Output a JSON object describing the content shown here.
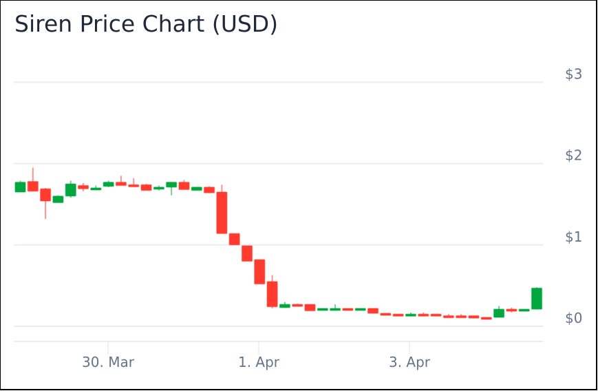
{
  "title": "Siren Price Chart (USD)",
  "colors": {
    "up": "#00a63e",
    "down": "#ff3b30",
    "grid": "#e9edf2",
    "axis_text": "#64748b",
    "title_text": "#1e293b"
  },
  "y_axis": {
    "ticks": [
      {
        "label": "$3",
        "value": 3
      },
      {
        "label": "$2",
        "value": 2
      },
      {
        "label": "$1",
        "value": 1
      },
      {
        "label": "$0",
        "value": 0
      }
    ]
  },
  "x_axis": {
    "ticks": [
      {
        "label": "30. Mar",
        "index": 7.5
      },
      {
        "label": "1. Apr",
        "index": 19.5
      },
      {
        "label": "3. Apr",
        "index": 31.5
      }
    ]
  },
  "chart_data": {
    "type": "candlestick",
    "title": "Siren Price Chart (USD)",
    "xlabel": "",
    "ylabel": "USD",
    "ylim": [
      0,
      3
    ],
    "grid": true,
    "y_ticks": [
      "$0",
      "$1",
      "$2",
      "$3"
    ],
    "x_ticks": [
      "30. Mar",
      "1. Apr",
      "3. Apr"
    ],
    "interval": "~4h",
    "candles": [
      {
        "o": 1.65,
        "h": 1.79,
        "l": 1.65,
        "c": 1.77
      },
      {
        "o": 1.78,
        "h": 1.95,
        "l": 1.66,
        "c": 1.66
      },
      {
        "o": 1.69,
        "h": 1.7,
        "l": 1.32,
        "c": 1.54
      },
      {
        "o": 1.52,
        "h": 1.61,
        "l": 1.52,
        "c": 1.6
      },
      {
        "o": 1.6,
        "h": 1.79,
        "l": 1.58,
        "c": 1.75
      },
      {
        "o": 1.73,
        "h": 1.76,
        "l": 1.66,
        "c": 1.69
      },
      {
        "o": 1.68,
        "h": 1.73,
        "l": 1.68,
        "c": 1.7
      },
      {
        "o": 1.72,
        "h": 1.79,
        "l": 1.71,
        "c": 1.77
      },
      {
        "o": 1.77,
        "h": 1.85,
        "l": 1.74,
        "c": 1.73
      },
      {
        "o": 1.74,
        "h": 1.82,
        "l": 1.73,
        "c": 1.72
      },
      {
        "o": 1.74,
        "h": 1.75,
        "l": 1.67,
        "c": 1.67
      },
      {
        "o": 1.69,
        "h": 1.73,
        "l": 1.67,
        "c": 1.71
      },
      {
        "o": 1.71,
        "h": 1.77,
        "l": 1.61,
        "c": 1.77
      },
      {
        "o": 1.77,
        "h": 1.8,
        "l": 1.68,
        "c": 1.68
      },
      {
        "o": 1.67,
        "h": 1.7,
        "l": 1.67,
        "c": 1.71
      },
      {
        "o": 1.71,
        "h": 1.72,
        "l": 1.64,
        "c": 1.64
      },
      {
        "o": 1.65,
        "h": 1.74,
        "l": 1.14,
        "c": 1.14
      },
      {
        "o": 1.14,
        "h": 1.14,
        "l": 1.0,
        "c": 1.0
      },
      {
        "o": 0.99,
        "h": 0.99,
        "l": 0.8,
        "c": 0.8
      },
      {
        "o": 0.82,
        "h": 0.82,
        "l": 0.52,
        "c": 0.52
      },
      {
        "o": 0.55,
        "h": 0.63,
        "l": 0.22,
        "c": 0.24
      },
      {
        "o": 0.23,
        "h": 0.3,
        "l": 0.23,
        "c": 0.27
      },
      {
        "o": 0.27,
        "h": 0.28,
        "l": 0.25,
        "c": 0.25
      },
      {
        "o": 0.27,
        "h": 0.27,
        "l": 0.19,
        "c": 0.19
      },
      {
        "o": 0.2,
        "h": 0.22,
        "l": 0.2,
        "c": 0.22
      },
      {
        "o": 0.21,
        "h": 0.27,
        "l": 0.21,
        "c": 0.22
      },
      {
        "o": 0.22,
        "h": 0.22,
        "l": 0.2,
        "c": 0.2
      },
      {
        "o": 0.2,
        "h": 0.21,
        "l": 0.2,
        "c": 0.22
      },
      {
        "o": 0.22,
        "h": 0.22,
        "l": 0.16,
        "c": 0.16
      },
      {
        "o": 0.16,
        "h": 0.16,
        "l": 0.14,
        "c": 0.14
      },
      {
        "o": 0.15,
        "h": 0.15,
        "l": 0.13,
        "c": 0.13
      },
      {
        "o": 0.14,
        "h": 0.17,
        "l": 0.14,
        "c": 0.15
      },
      {
        "o": 0.15,
        "h": 0.17,
        "l": 0.14,
        "c": 0.14
      },
      {
        "o": 0.15,
        "h": 0.15,
        "l": 0.13,
        "c": 0.13
      },
      {
        "o": 0.13,
        "h": 0.15,
        "l": 0.12,
        "c": 0.12
      },
      {
        "o": 0.13,
        "h": 0.15,
        "l": 0.12,
        "c": 0.12
      },
      {
        "o": 0.13,
        "h": 0.13,
        "l": 0.1,
        "c": 0.1
      },
      {
        "o": 0.11,
        "h": 0.11,
        "l": 0.09,
        "c": 0.09
      },
      {
        "o": 0.11,
        "h": 0.25,
        "l": 0.11,
        "c": 0.21
      },
      {
        "o": 0.21,
        "h": 0.23,
        "l": 0.17,
        "c": 0.19
      },
      {
        "o": 0.19,
        "h": 0.21,
        "l": 0.19,
        "c": 0.21
      },
      {
        "o": 0.21,
        "h": 0.48,
        "l": 0.21,
        "c": 0.47
      }
    ]
  }
}
